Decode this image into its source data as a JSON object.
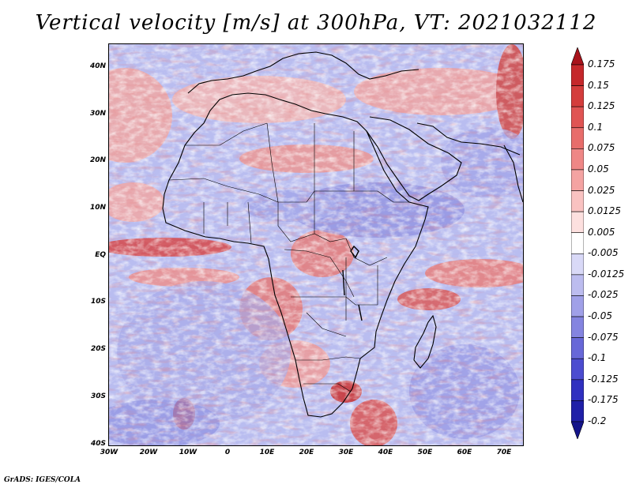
{
  "title": "Vertical velocity [m/s] at 300hPa, VT: 2021032112",
  "credit": "GrADS: IGES/COLA",
  "lat_labels": [
    "40N",
    "30N",
    "20N",
    "10N",
    "EQ",
    "10S",
    "20S",
    "30S",
    "40S"
  ],
  "lon_labels": [
    "30W",
    "20W",
    "10W",
    "0",
    "10E",
    "20E",
    "30E",
    "40E",
    "50E",
    "60E",
    "70E"
  ],
  "colorbar": {
    "labels": [
      "0.175",
      "0.15",
      "0.125",
      "0.1",
      "0.075",
      "0.05",
      "0.025",
      "0.0125",
      "0.005",
      "-0.005",
      "-0.0125",
      "-0.025",
      "-0.05",
      "-0.075",
      "-0.1",
      "-0.125",
      "-0.175",
      "-0.2"
    ],
    "colors": [
      "#a8131b",
      "#c5282b",
      "#d43d3c",
      "#e05453",
      "#e86d6b",
      "#ef8786",
      "#f4a3a2",
      "#f9c2c1",
      "#fde0df",
      "#ffffff",
      "#d9d9f7",
      "#bcbcef",
      "#a0a0e8",
      "#8484e0",
      "#6868d8",
      "#4c4cd0",
      "#3030c0",
      "#2020a8",
      "#14148a"
    ]
  },
  "map": {
    "base_color": "#b9bdf0",
    "lat_range": [
      -40,
      45
    ],
    "lon_range": [
      -30,
      75
    ]
  }
}
